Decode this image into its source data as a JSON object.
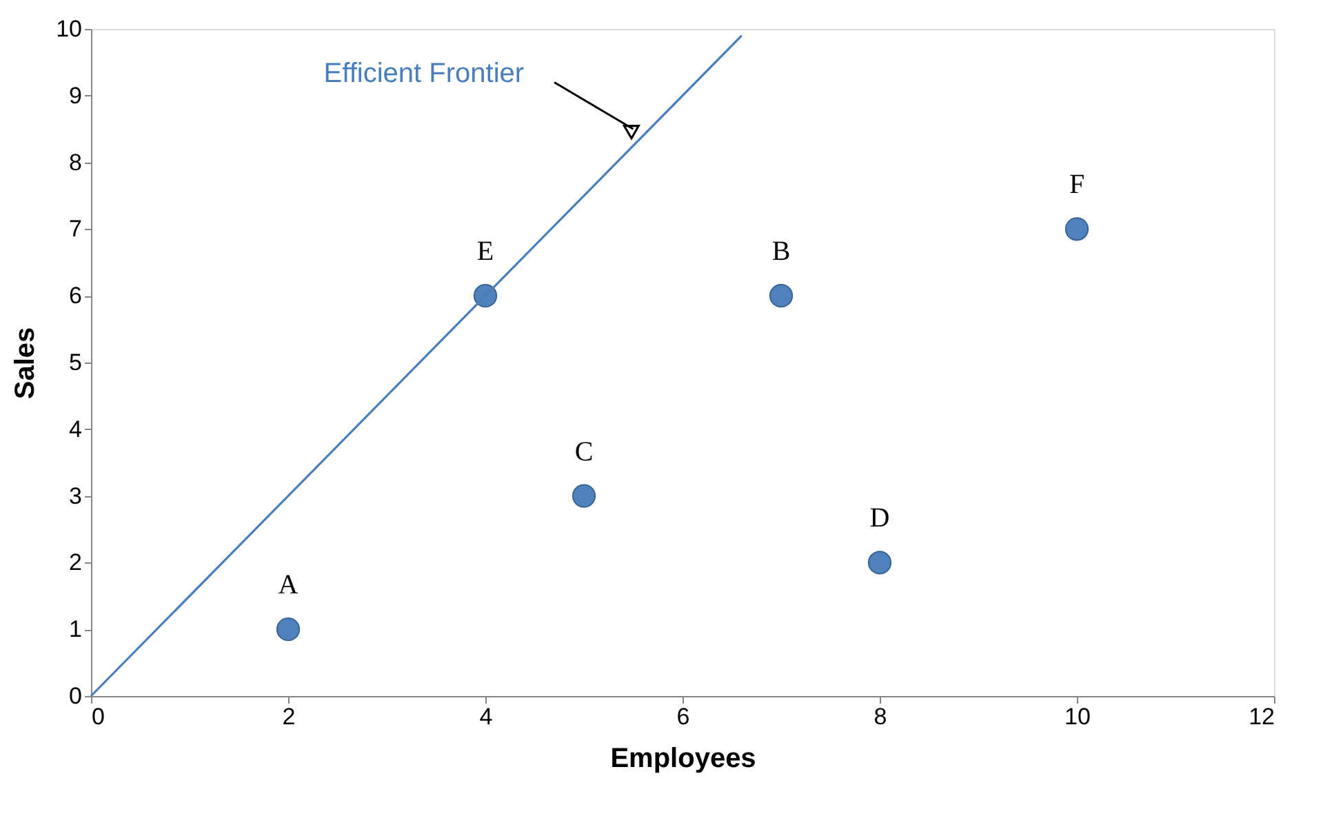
{
  "chart_data": {
    "type": "scatter",
    "xlabel": "Employees",
    "ylabel": "Sales",
    "series": [
      {
        "color": "#4f81bd",
        "marker": "circle",
        "x": [
          2,
          4,
          5,
          7,
          8,
          10
        ],
        "values": [
          1,
          6,
          3,
          6,
          2,
          7
        ]
      },
      {
        "type": "line",
        "color": "#4a7ebb",
        "x": [
          0,
          6.6
        ],
        "values": [
          0,
          9.9
        ]
      }
    ],
    "annotations": [
      {
        "text": "Efficient Frontier",
        "x": 5.5,
        "y": 8.5
      },
      {
        "text": "A",
        "x": 2,
        "y": 1
      },
      {
        "text": "E",
        "x": 4,
        "y": 6
      },
      {
        "text": "C",
        "x": 5,
        "y": 3
      },
      {
        "text": "B",
        "x": 7,
        "y": 6
      },
      {
        "text": "D",
        "x": 8,
        "y": 2
      },
      {
        "text": "F",
        "x": 10,
        "y": 7
      }
    ],
    "xlim": [
      0,
      12
    ],
    "xticks": [
      0,
      2,
      4,
      6,
      8,
      10,
      12
    ],
    "ylim": [
      0,
      10
    ],
    "yticks": [
      0,
      1,
      2,
      3,
      4,
      5,
      6,
      7,
      8,
      9,
      10
    ],
    "grid": false
  }
}
